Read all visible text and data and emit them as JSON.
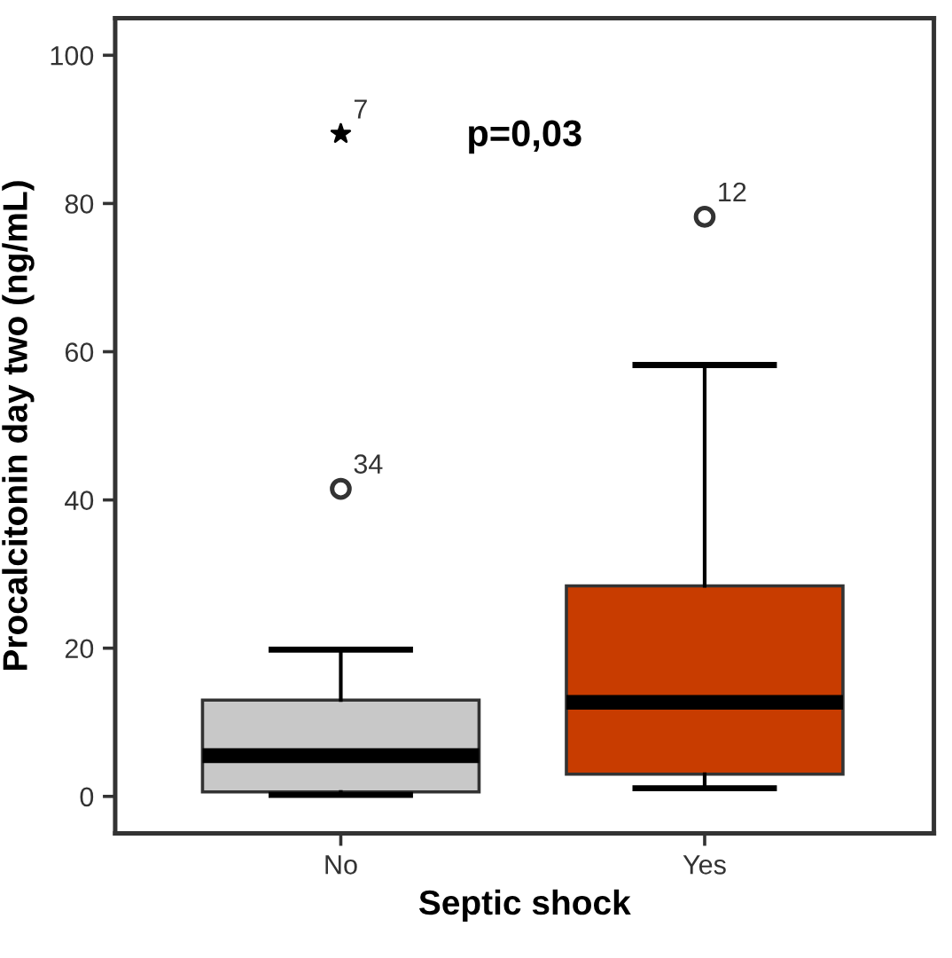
{
  "chart_data": {
    "type": "box",
    "xlabel": "Septic shock",
    "ylabel": "Procalcitonin day two (ng/mL)",
    "categories": [
      "No",
      "Yes"
    ],
    "colors": [
      "#c8c8c8",
      "#c83c00"
    ],
    "boxes": [
      {
        "low": 0.2,
        "q1": 0.6,
        "median": 5.5,
        "q3": 13,
        "high": 19.8,
        "outliers": [
          89.4,
          41.5
        ]
      },
      {
        "low": 1.1,
        "q1": 3.0,
        "median": 12.7,
        "q3": 28.4,
        "high": 58.2,
        "outliers": [
          78.2
        ]
      }
    ],
    "ylim": [
      -5,
      105
    ],
    "yticks": [
      0,
      20,
      40,
      60,
      80,
      100
    ],
    "grid": false,
    "annotations": [
      "p=0,03",
      "7",
      "34",
      "12"
    ]
  }
}
